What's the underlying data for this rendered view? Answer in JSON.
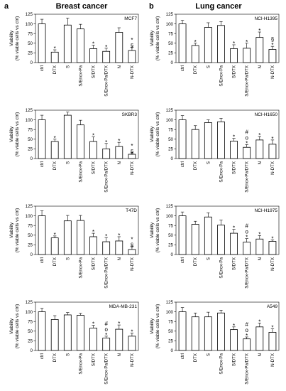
{
  "header": {
    "left_letter": "a",
    "left_title": "Breast cancer",
    "right_letter": "b",
    "right_title": "Lung cancer"
  },
  "chart_data": [
    {
      "type": "bar",
      "title": "MCF7",
      "ylabel": "Viability\n(% viable cells vs ctrl)",
      "ylim": [
        0,
        125
      ],
      "yticks": [
        0,
        25,
        50,
        75,
        100,
        125
      ],
      "categories": [
        "ctrl",
        "DTX",
        "S",
        "S/Enox-Pa",
        "S/DTX",
        "S/Enox-Pa/DTX",
        "N",
        "N-DTX"
      ],
      "values": [
        100,
        27,
        97,
        87,
        36,
        29,
        78,
        31
      ],
      "errors": [
        12,
        6,
        18,
        12,
        9,
        8,
        12,
        9
      ],
      "annotations": [
        "",
        "*",
        "",
        "",
        "*",
        "*",
        "",
        "*\n§"
      ]
    },
    {
      "type": "bar",
      "title": "SKBR3",
      "ylabel": "Viability\n(% viable cells vs ctrl)",
      "ylim": [
        0,
        125
      ],
      "yticks": [
        0,
        25,
        50,
        75,
        100,
        125
      ],
      "categories": [
        "ctrl",
        "DTX",
        "S",
        "S/Enox-Pa",
        "S/DTX",
        "S/Enox-Pa/DTX",
        "N",
        "N-DTX"
      ],
      "values": [
        100,
        44,
        112,
        87,
        44,
        25,
        31,
        11
      ],
      "errors": [
        12,
        6,
        8,
        12,
        12,
        14,
        11,
        4
      ],
      "annotations": [
        "",
        "*",
        "",
        "",
        "*",
        "*",
        "*",
        "*\n§"
      ]
    },
    {
      "type": "bar",
      "title": "T47D",
      "ylabel": "Viability\n(% viable cells vs ctrl)",
      "ylim": [
        0,
        125
      ],
      "yticks": [
        0,
        25,
        50,
        75,
        100,
        125
      ],
      "categories": [
        "ctrl",
        "DTX",
        "S",
        "S/Enox-Pa",
        "S/DTX",
        "S/Enox-Pa/DTX",
        "N",
        "N-DTX"
      ],
      "values": [
        100,
        43,
        87,
        88,
        46,
        33,
        35,
        13
      ],
      "errors": [
        13,
        5,
        14,
        13,
        9,
        11,
        11,
        8
      ],
      "annotations": [
        "",
        "*",
        "",
        "",
        "*",
        "*",
        "*",
        "*\n§"
      ]
    },
    {
      "type": "bar",
      "title": "MDA-MB-231",
      "ylabel": "Viability\n(% viable cells vs ctrl)",
      "ylim": [
        0,
        125
      ],
      "yticks": [
        0,
        25,
        50,
        75,
        100,
        125
      ],
      "categories": [
        "ctrl",
        "DTX",
        "S",
        "S/Enox-Pa",
        "S/DTX",
        "S/Enox-Pa/DTX",
        "N",
        "N-DTX"
      ],
      "values": [
        100,
        80,
        92,
        91,
        58,
        32,
        55,
        37
      ],
      "errors": [
        9,
        10,
        6,
        5,
        7,
        5,
        11,
        8
      ],
      "annotations": [
        "",
        "",
        "",
        "",
        "*",
        "#\no\n*",
        "*",
        "*"
      ]
    },
    {
      "type": "bar",
      "title": "NCI-H1395",
      "ylabel": "Viability\n(% viable cells vs ctrl)",
      "ylim": [
        0,
        125
      ],
      "yticks": [
        0,
        25,
        50,
        75,
        100,
        125
      ],
      "categories": [
        "ctrl",
        "DTX",
        "S",
        "S/Enox-Pa",
        "S/DTX",
        "S/Enox-Pa/DTX",
        "N",
        "N-DTX"
      ],
      "values": [
        100,
        44,
        91,
        96,
        36,
        37,
        65,
        34
      ],
      "errors": [
        9,
        6,
        12,
        10,
        10,
        13,
        14,
        8
      ],
      "annotations": [
        "",
        "*",
        "",
        "",
        "*",
        "*",
        "*",
        "§\n*"
      ]
    },
    {
      "type": "bar",
      "title": "NCI-H1650",
      "ylabel": "Viability\n(% viable cells vs ctrl)",
      "ylim": [
        0,
        125
      ],
      "yticks": [
        0,
        25,
        50,
        75,
        100,
        125
      ],
      "categories": [
        "ctrl",
        "DTX",
        "S",
        "S/Enox-Pa",
        "S/DTX",
        "S/Enox-Pa/DTX",
        "N",
        "N-DTX"
      ],
      "values": [
        100,
        75,
        93,
        95,
        45,
        29,
        48,
        37
      ],
      "errors": [
        11,
        10,
        7,
        9,
        7,
        7,
        9,
        11
      ],
      "annotations": [
        "",
        "",
        "",
        "",
        "*",
        "#\no\n*",
        "*",
        "*"
      ]
    },
    {
      "type": "bar",
      "title": "NCI-H1975",
      "ylabel": "Viability\n(% viable cells vs ctrl)",
      "ylim": [
        0,
        125
      ],
      "yticks": [
        0,
        25,
        50,
        75,
        100,
        125
      ],
      "categories": [
        "ctrl",
        "DTX",
        "S",
        "S/Enox-Pa",
        "S/DTX",
        "S/Enox-Pa/DTX",
        "N",
        "N-DTX"
      ],
      "values": [
        100,
        78,
        97,
        76,
        55,
        32,
        40,
        34
      ],
      "errors": [
        10,
        8,
        11,
        13,
        10,
        9,
        9,
        4
      ],
      "annotations": [
        "",
        "",
        "",
        "",
        "*",
        "#\no\n*",
        "*",
        "*"
      ]
    },
    {
      "type": "bar",
      "title": "A549",
      "ylabel": "Viability\n(% viable cells vs ctrl)",
      "ylim": [
        0,
        125
      ],
      "yticks": [
        0,
        25,
        50,
        75,
        100,
        125
      ],
      "categories": [
        "ctrl",
        "DTX",
        "S",
        "S/Enox-Pa",
        "S/DTX",
        "S/Enox-Pa/DTX",
        "N",
        "N-DTX"
      ],
      "values": [
        100,
        87,
        87,
        97,
        54,
        30,
        61,
        47
      ],
      "errors": [
        11,
        10,
        12,
        7,
        7,
        5,
        10,
        9
      ],
      "annotations": [
        "",
        "",
        "",
        "",
        "*",
        "#\no\n*",
        "*",
        "*"
      ]
    }
  ]
}
